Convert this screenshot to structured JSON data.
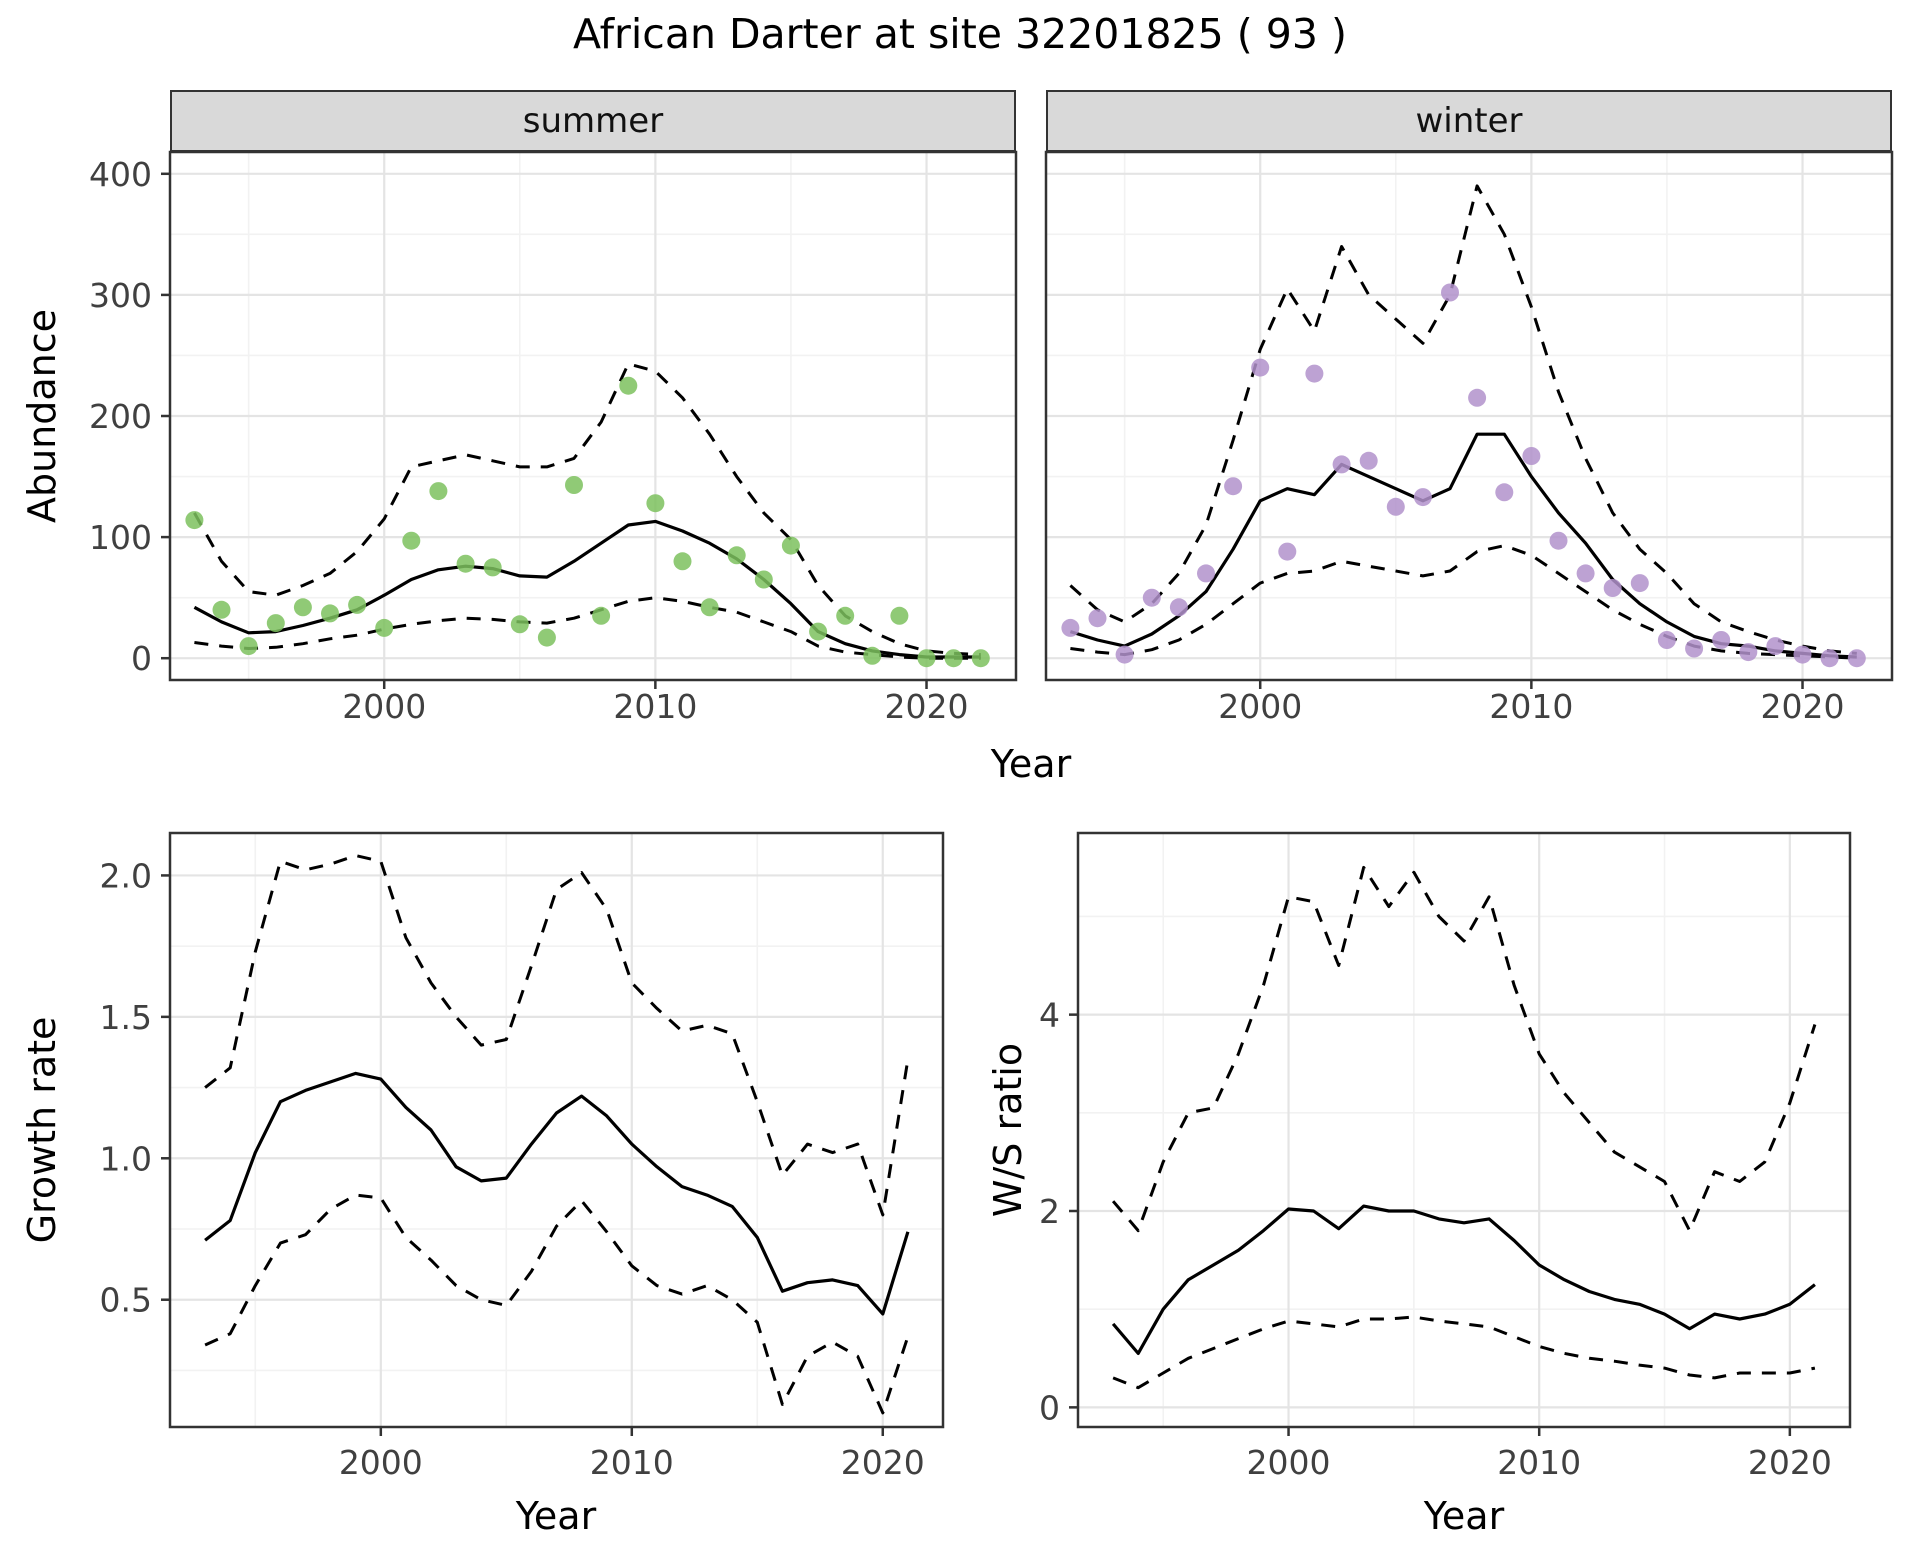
{
  "title": "African Darter at site 32201825 ( 93 )",
  "labels": {
    "abundance": "Abundance",
    "year": "Year",
    "growth_rate": "Growth rate",
    "ws_ratio": "W/S ratio"
  },
  "facets": {
    "summer": "summer",
    "winter": "winter"
  },
  "colors": {
    "summer_points": "#7cc15e",
    "winter_points": "#b292cb",
    "line": "#000000",
    "strip_bg": "#d9d9d9",
    "grid_major": "#e4e4e4",
    "grid_minor": "#f2f2f2",
    "panel_border": "#333333",
    "tick_text": "#404040"
  },
  "chart_data": [
    {
      "id": "abundance-summer",
      "type": "scatter",
      "title": "summer",
      "xlabel": "Year",
      "ylabel": "Abundance",
      "xlim": [
        1992.1,
        2023.3
      ],
      "ylim": [
        -18,
        418
      ],
      "xticks": [
        2000,
        2010,
        2020
      ],
      "xticklabels": [
        "2000",
        "2010",
        "2020"
      ],
      "xminor": [
        1995,
        2005,
        2015
      ],
      "yticks": [
        0,
        100,
        200,
        300,
        400
      ],
      "yticklabels": [
        "0",
        "100",
        "200",
        "300",
        "400"
      ],
      "yminor": [
        50,
        150,
        250,
        350
      ],
      "point_color": "#7cc15e",
      "years": [
        1993,
        1994,
        1995,
        1996,
        1997,
        1998,
        1999,
        2000,
        2001,
        2002,
        2003,
        2004,
        2005,
        2006,
        2007,
        2008,
        2009,
        2010,
        2011,
        2012,
        2013,
        2014,
        2015,
        2016,
        2017,
        2018,
        2019,
        2020,
        2021,
        2022
      ],
      "points": [
        114,
        40,
        10,
        29,
        42,
        37,
        44,
        25,
        97,
        138,
        78,
        75,
        28,
        17,
        143,
        35,
        225,
        128,
        80,
        42,
        85,
        65,
        93,
        22,
        35,
        2,
        35,
        0,
        0,
        0
      ],
      "fit": [
        42,
        30,
        21,
        22,
        27,
        33,
        40,
        52,
        65,
        73,
        76,
        74,
        68,
        67,
        80,
        95,
        110,
        113,
        105,
        95,
        82,
        65,
        45,
        22,
        12,
        6,
        3,
        1,
        1,
        1
      ],
      "upper": [
        120,
        80,
        55,
        52,
        60,
        70,
        88,
        115,
        158,
        163,
        168,
        163,
        158,
        158,
        165,
        195,
        243,
        237,
        215,
        185,
        150,
        120,
        98,
        60,
        35,
        22,
        12,
        6,
        4,
        3
      ],
      "lower": [
        13,
        10,
        8,
        9,
        12,
        16,
        19,
        24,
        28,
        31,
        33,
        32,
        30,
        29,
        33,
        40,
        47,
        50,
        47,
        42,
        38,
        30,
        22,
        10,
        5,
        3,
        1,
        0,
        0,
        0
      ]
    },
    {
      "id": "abundance-winter",
      "type": "scatter",
      "title": "winter",
      "xlabel": "Year",
      "ylabel": "Abundance",
      "xlim": [
        1992.1,
        2023.3
      ],
      "ylim": [
        -18,
        418
      ],
      "xticks": [
        2000,
        2010,
        2020
      ],
      "xticklabels": [
        "2000",
        "2010",
        "2020"
      ],
      "xminor": [
        1995,
        2005,
        2015
      ],
      "yticks": [
        0,
        100,
        200,
        300,
        400
      ],
      "yticklabels": [
        "0",
        "100",
        "200",
        "300",
        "400"
      ],
      "yminor": [
        50,
        150,
        250,
        350
      ],
      "point_color": "#b292cb",
      "years": [
        1993,
        1994,
        1995,
        1996,
        1997,
        1998,
        1999,
        2000,
        2001,
        2002,
        2003,
        2004,
        2005,
        2006,
        2007,
        2008,
        2009,
        2010,
        2011,
        2012,
        2013,
        2014,
        2015,
        2016,
        2017,
        2018,
        2019,
        2020,
        2021,
        2022
      ],
      "points": [
        25,
        33,
        3,
        50,
        42,
        70,
        142,
        240,
        88,
        235,
        160,
        163,
        125,
        133,
        302,
        215,
        137,
        167,
        97,
        70,
        58,
        62,
        15,
        8,
        15,
        5,
        10,
        3,
        0,
        0
      ],
      "fit": [
        22,
        15,
        10,
        20,
        35,
        55,
        90,
        130,
        140,
        135,
        160,
        150,
        140,
        130,
        140,
        185,
        185,
        150,
        120,
        95,
        65,
        45,
        30,
        18,
        12,
        10,
        6,
        4,
        2,
        1
      ],
      "upper": [
        60,
        40,
        30,
        45,
        70,
        110,
        180,
        255,
        305,
        270,
        340,
        300,
        280,
        260,
        300,
        390,
        350,
        290,
        220,
        165,
        120,
        90,
        70,
        45,
        30,
        22,
        15,
        10,
        6,
        4
      ],
      "lower": [
        8,
        5,
        3,
        7,
        15,
        28,
        45,
        62,
        70,
        72,
        80,
        76,
        72,
        68,
        72,
        88,
        93,
        85,
        70,
        55,
        40,
        28,
        18,
        10,
        6,
        4,
        3,
        2,
        1,
        0
      ]
    },
    {
      "id": "growth-rate",
      "type": "line",
      "title": "",
      "xlabel": "Year",
      "ylabel": "Growth rate",
      "xlim": [
        1991.6,
        2022.4
      ],
      "ylim": [
        0.05,
        2.15
      ],
      "xticks": [
        2000,
        2010,
        2020
      ],
      "xticklabels": [
        "2000",
        "2010",
        "2020"
      ],
      "xminor": [
        1995,
        2005,
        2015
      ],
      "yticks": [
        0.5,
        1.0,
        1.5,
        2.0
      ],
      "yticklabels": [
        "0.5",
        "1.0",
        "1.5",
        "2.0"
      ],
      "yminor": [
        0.25,
        0.75,
        1.25,
        1.75
      ],
      "years": [
        1993,
        1994,
        1995,
        1996,
        1997,
        1998,
        1999,
        2000,
        2001,
        2002,
        2003,
        2004,
        2005,
        2006,
        2007,
        2008,
        2009,
        2010,
        2011,
        2012,
        2013,
        2014,
        2015,
        2016,
        2017,
        2018,
        2019,
        2020,
        2021
      ],
      "fit": [
        0.71,
        0.78,
        1.02,
        1.2,
        1.24,
        1.27,
        1.3,
        1.28,
        1.18,
        1.1,
        0.97,
        0.92,
        0.93,
        1.05,
        1.16,
        1.22,
        1.15,
        1.05,
        0.97,
        0.9,
        0.87,
        0.83,
        0.72,
        0.53,
        0.56,
        0.57,
        0.55,
        0.45,
        0.74
      ],
      "upper": [
        1.25,
        1.32,
        1.73,
        2.05,
        2.02,
        2.04,
        2.07,
        2.05,
        1.78,
        1.62,
        1.5,
        1.4,
        1.42,
        1.68,
        1.95,
        2.01,
        1.88,
        1.62,
        1.53,
        1.45,
        1.47,
        1.44,
        1.2,
        0.94,
        1.05,
        1.02,
        1.05,
        0.8,
        1.35
      ],
      "lower": [
        0.34,
        0.38,
        0.55,
        0.7,
        0.73,
        0.82,
        0.87,
        0.86,
        0.72,
        0.64,
        0.55,
        0.5,
        0.48,
        0.6,
        0.76,
        0.85,
        0.74,
        0.62,
        0.55,
        0.52,
        0.55,
        0.5,
        0.42,
        0.13,
        0.3,
        0.35,
        0.3,
        0.1,
        0.37
      ]
    },
    {
      "id": "ws-ratio",
      "type": "line",
      "title": "",
      "xlabel": "Year",
      "ylabel": "W/S ratio",
      "xlim": [
        1991.6,
        2022.4
      ],
      "ylim": [
        -0.2,
        5.85
      ],
      "xticks": [
        2000,
        2010,
        2020
      ],
      "xticklabels": [
        "2000",
        "2010",
        "2020"
      ],
      "xminor": [
        1995,
        2005,
        2015
      ],
      "yticks": [
        0,
        2,
        4
      ],
      "yticklabels": [
        "0",
        "2",
        "4"
      ],
      "yminor": [
        1,
        3,
        5
      ],
      "years": [
        1993,
        1994,
        1995,
        1996,
        1997,
        1998,
        1999,
        2000,
        2001,
        2002,
        2003,
        2004,
        2005,
        2006,
        2007,
        2008,
        2009,
        2010,
        2011,
        2012,
        2013,
        2014,
        2015,
        2016,
        2017,
        2018,
        2019,
        2020,
        2021
      ],
      "fit": [
        0.85,
        0.55,
        1.0,
        1.3,
        1.45,
        1.6,
        1.8,
        2.02,
        2.0,
        1.82,
        2.05,
        2.0,
        2.0,
        1.92,
        1.88,
        1.92,
        1.7,
        1.45,
        1.3,
        1.18,
        1.1,
        1.05,
        0.95,
        0.8,
        0.95,
        0.9,
        0.95,
        1.05,
        1.25
      ],
      "upper": [
        2.1,
        1.8,
        2.5,
        3.0,
        3.05,
        3.6,
        4.3,
        5.2,
        5.15,
        4.5,
        5.5,
        5.1,
        5.45,
        5.0,
        4.75,
        5.2,
        4.3,
        3.6,
        3.2,
        2.9,
        2.6,
        2.45,
        2.3,
        1.8,
        2.4,
        2.3,
        2.5,
        3.1,
        3.9
      ],
      "lower": [
        0.3,
        0.2,
        0.35,
        0.5,
        0.6,
        0.7,
        0.8,
        0.88,
        0.85,
        0.82,
        0.9,
        0.9,
        0.92,
        0.88,
        0.85,
        0.82,
        0.72,
        0.62,
        0.55,
        0.5,
        0.47,
        0.43,
        0.4,
        0.33,
        0.3,
        0.35,
        0.35,
        0.35,
        0.4
      ]
    }
  ]
}
